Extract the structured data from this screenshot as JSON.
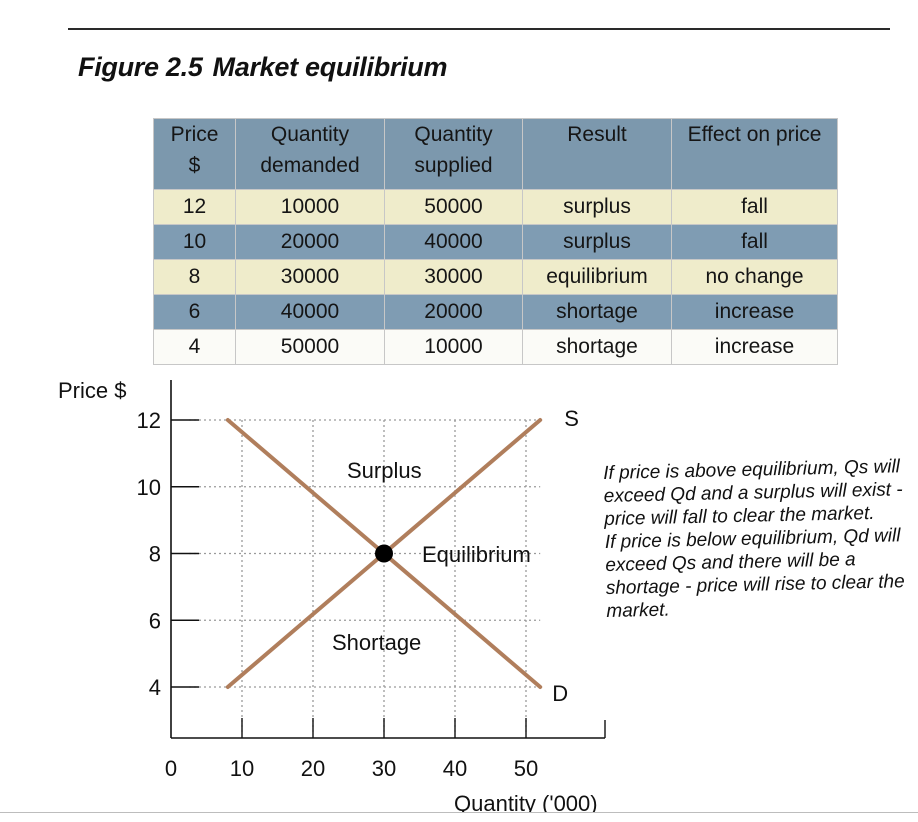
{
  "figure": {
    "number": "Figure 2.5",
    "title": "Market equilibrium"
  },
  "table": {
    "headers": [
      [
        "Price",
        "$"
      ],
      [
        "Quantity",
        "demanded"
      ],
      [
        "Quantity",
        "supplied"
      ],
      [
        "Result"
      ],
      [
        "Effect on price"
      ]
    ],
    "rows": [
      [
        "12",
        "10000",
        "50000",
        "surplus",
        "fall"
      ],
      [
        "10",
        "20000",
        "40000",
        "surplus",
        "fall"
      ],
      [
        "8",
        "30000",
        "30000",
        "equilibrium",
        "no change"
      ],
      [
        "6",
        "40000",
        "20000",
        "shortage",
        "increase"
      ],
      [
        "4",
        "50000",
        "10000",
        "shortage",
        "increase"
      ]
    ]
  },
  "chart_data": {
    "type": "line",
    "ylabel": "Price $",
    "xlabel": "Quantity ('000)",
    "x_origin_label": "0",
    "xticks": [
      10,
      20,
      30,
      40,
      50
    ],
    "yticks": [
      12,
      10,
      8,
      6,
      4
    ],
    "xlim": [
      0,
      60
    ],
    "ylim": [
      2,
      13.5
    ],
    "grid": true,
    "series": [
      {
        "name": "S",
        "points": [
          [
            8,
            4
          ],
          [
            52,
            12
          ]
        ]
      },
      {
        "name": "D",
        "points": [
          [
            8,
            12
          ],
          [
            52,
            4
          ]
        ]
      }
    ],
    "equilibrium_point": [
      30,
      8
    ],
    "annotations": {
      "surplus": "Surplus",
      "shortage": "Shortage",
      "equilibrium": "Equilibrium"
    },
    "colors": {
      "curves": "#b07e5c",
      "grid": "#9a9a9a",
      "point": "#000000"
    }
  },
  "note": [
    "If price is above equilibrium, Qs will  exceed Qd and a surplus will exist - price will fall to clear the market.",
    "If price is below equilibrium, Qd will exceed Qs and there will be a shortage - price will rise to clear the market."
  ]
}
